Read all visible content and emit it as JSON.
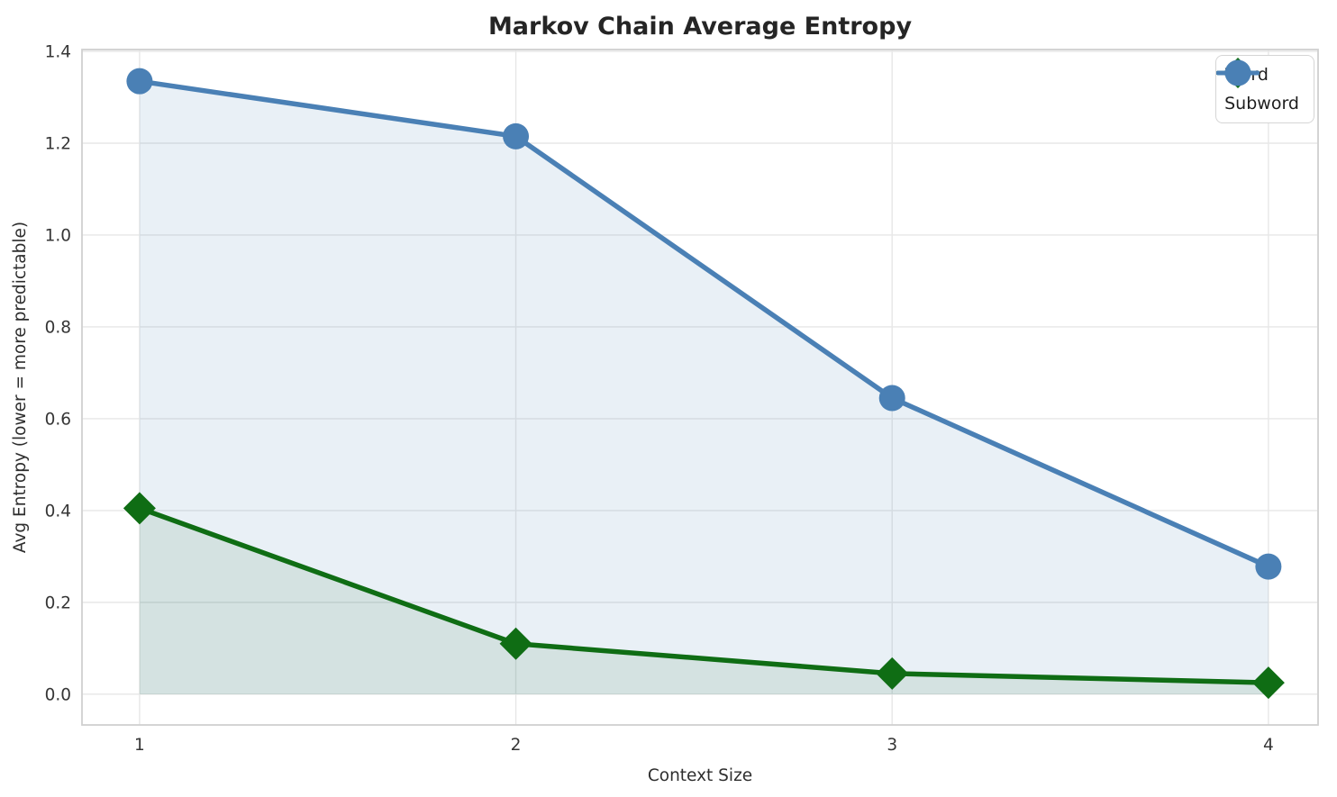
{
  "chart_data": {
    "type": "line",
    "title": "Markov Chain Average Entropy",
    "xlabel": "Context Size",
    "ylabel": "Avg Entropy (lower = more predictable)",
    "x": [
      1,
      2,
      3,
      4
    ],
    "series": [
      {
        "name": "Word",
        "values": [
          0.405,
          0.11,
          0.045,
          0.025
        ],
        "color": "#0f6d14",
        "marker": "diamond",
        "fill_opacity": 0.1
      },
      {
        "name": "Subword",
        "values": [
          1.335,
          1.215,
          0.645,
          0.278
        ],
        "color": "#4a80b5",
        "marker": "circle",
        "fill_opacity": 0.12
      }
    ],
    "area_fill_to": 0,
    "xticks": [
      1,
      2,
      3,
      4
    ],
    "xtick_labels": [
      "1",
      "2",
      "3",
      "4"
    ],
    "yticks": [
      0.0,
      0.2,
      0.4,
      0.6,
      0.8,
      1.0,
      1.2,
      1.4
    ],
    "ytick_labels": [
      "0.0",
      "0.2",
      "0.4",
      "0.6",
      "0.8",
      "1.0",
      "1.2",
      "1.4"
    ],
    "xlim": [
      0.847,
      4.132
    ],
    "ylim": [
      -0.067,
      1.404
    ],
    "grid": true,
    "legend_position": "upper right"
  },
  "styles": {
    "background": "#ffffff",
    "grid_color": "#e7e7e7",
    "spine_color": "#d0d0d0",
    "title_color": "#252525",
    "axis_label_color": "#2e2e2e",
    "tick_label_color": "#363636",
    "legend_text_color": "#1f1f1f"
  }
}
